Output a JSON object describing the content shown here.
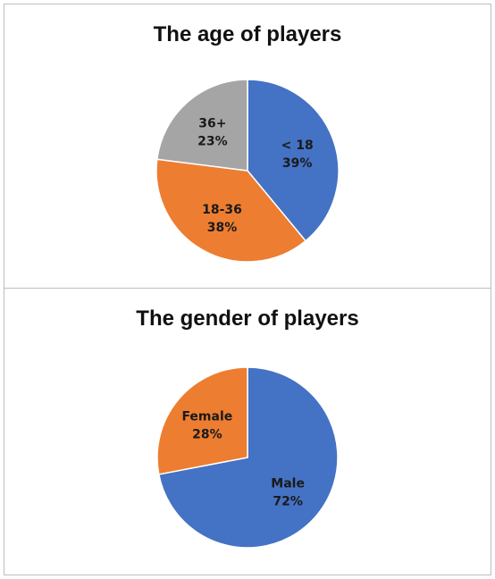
{
  "chart_data": [
    {
      "type": "pie",
      "title": "The age of players",
      "labels": [
        "< 18",
        "18-36",
        "36+"
      ],
      "values": [
        39,
        38,
        23
      ],
      "value_labels": [
        "39%",
        "38%",
        "23%"
      ],
      "colors": [
        "#4472C4",
        "#ED7D31",
        "#A5A5A5"
      ],
      "legend": "none",
      "start": "12 o'clock, clockwise"
    },
    {
      "type": "pie",
      "title": "The gender of players",
      "labels": [
        "Male",
        "Female"
      ],
      "values": [
        72,
        28
      ],
      "value_labels": [
        "72%",
        "28%"
      ],
      "colors": [
        "#4472C4",
        "#ED7D31"
      ],
      "legend": "none",
      "start": "12 o'clock, clockwise"
    }
  ]
}
